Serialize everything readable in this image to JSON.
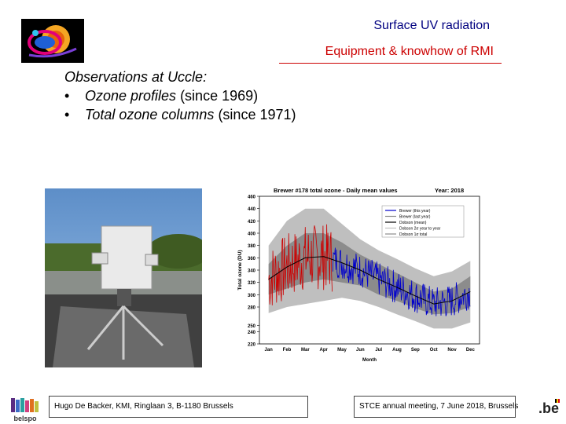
{
  "header": {
    "title": "Surface UV radiation",
    "subtitle": "Equipment & knowhow of RMI"
  },
  "body": {
    "heading": "Observations at Uccle:",
    "bullets": [
      {
        "marker": "•",
        "emph": "Ozone profiles",
        "rest": " (since 1969)"
      },
      {
        "marker": "•",
        "emph": "Total ozone columns",
        "rest": " (since 1971)"
      }
    ]
  },
  "footer": {
    "left": "Hugo De Backer, KMI, Ringlaan 3, B-1180 Brussels",
    "right": "STCE annual meeting, 7 June 2018, Brussels",
    "belspo": "belspo",
    "be": ".be"
  },
  "colors": {
    "title": "#000080",
    "subtitle": "#cc0000",
    "series_2018_red": "#cc0000",
    "series_2018_blue": "#0000cc",
    "band_outer": "#bfbfbf",
    "band_inner": "#8c8c8c"
  },
  "chart_data": {
    "type": "line",
    "title": "Brewer #178 total ozone - Daily mean values",
    "year_label": "Year: 2018",
    "xlabel": "Month",
    "ylabel": "Total ozone (DU)",
    "categories": [
      "Jan",
      "Feb",
      "Mar",
      "Apr",
      "May",
      "Jun",
      "Jul",
      "Aug",
      "Sep",
      "Oct",
      "Nov",
      "Dec"
    ],
    "ylim": [
      220,
      460
    ],
    "yticks": [
      220,
      240,
      250,
      280,
      300,
      320,
      340,
      360,
      380,
      400,
      420,
      440,
      460
    ],
    "legend": [
      "Brewer (this year)",
      "Brewer (last year)",
      "Dobson (mean)",
      "Dobson 2σ year to year",
      "Dobson 1σ total"
    ],
    "legend_position": "top-right",
    "mean": [
      {
        "x": 1,
        "y": 325
      },
      {
        "x": 2,
        "y": 345
      },
      {
        "x": 3,
        "y": 360
      },
      {
        "x": 4,
        "y": 362
      },
      {
        "x": 5,
        "y": 352
      },
      {
        "x": 6,
        "y": 340
      },
      {
        "x": 7,
        "y": 325
      },
      {
        "x": 8,
        "y": 312
      },
      {
        "x": 9,
        "y": 298
      },
      {
        "x": 10,
        "y": 285
      },
      {
        "x": 11,
        "y": 290
      },
      {
        "x": 12,
        "y": 305
      }
    ],
    "band_1sigma": {
      "upper": [
        350,
        380,
        400,
        400,
        385,
        365,
        350,
        335,
        320,
        305,
        310,
        330
      ],
      "lower": [
        300,
        310,
        320,
        325,
        320,
        315,
        300,
        290,
        278,
        268,
        270,
        280
      ]
    },
    "band_2sigma": {
      "upper": [
        380,
        420,
        440,
        440,
        415,
        390,
        372,
        358,
        343,
        330,
        338,
        355
      ],
      "lower": [
        270,
        280,
        285,
        290,
        295,
        290,
        280,
        268,
        257,
        245,
        245,
        255
      ]
    }
  }
}
